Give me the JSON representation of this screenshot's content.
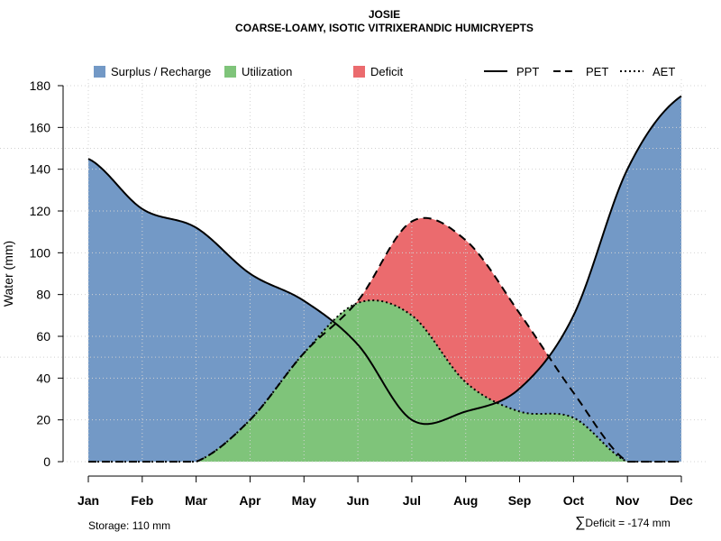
{
  "chart_data": {
    "type": "area",
    "title": "JOSIE",
    "subtitle": "COARSE-LOAMY, ISOTIC VITRIXERANDIC HUMICRYEPTS",
    "xlabel": "",
    "ylabel": "Water (mm)",
    "ylim": [
      0,
      180
    ],
    "yticks": [
      0,
      20,
      40,
      60,
      80,
      100,
      120,
      140,
      160,
      180
    ],
    "categories": [
      "Jan",
      "Feb",
      "Mar",
      "Apr",
      "May",
      "Jun",
      "Jul",
      "Aug",
      "Sep",
      "Oct",
      "Nov",
      "Dec"
    ],
    "grid": true,
    "series": [
      {
        "name": "PPT",
        "style": "solid",
        "values": [
          145,
          121,
          112,
          90,
          77,
          56,
          20,
          24,
          35,
          70,
          140,
          175
        ]
      },
      {
        "name": "PET",
        "style": "dashed",
        "values": [
          0,
          0,
          0,
          20,
          52,
          77,
          115,
          106,
          71,
          33,
          0,
          0
        ]
      },
      {
        "name": "AET",
        "style": "dotted",
        "values": [
          0,
          0,
          0,
          20,
          52,
          76,
          70,
          38,
          24,
          21,
          0,
          0
        ]
      }
    ],
    "legend": {
      "position": "top",
      "areas": [
        {
          "label": "Surplus / Recharge",
          "color": "#7399c6"
        },
        {
          "label": "Utilization",
          "color": "#7fc47a"
        },
        {
          "label": "Deficit",
          "color": "#eb6b6e"
        }
      ],
      "lines": [
        {
          "label": "PPT",
          "style": "solid"
        },
        {
          "label": "PET",
          "style": "dashed"
        },
        {
          "label": "AET",
          "style": "dotted"
        }
      ]
    },
    "reference_lines": [
      50,
      150
    ],
    "annotations": {
      "storage": "Storage: 110 mm",
      "deficit_symbol": "∑",
      "deficit": "Deficit = -174 mm"
    }
  }
}
